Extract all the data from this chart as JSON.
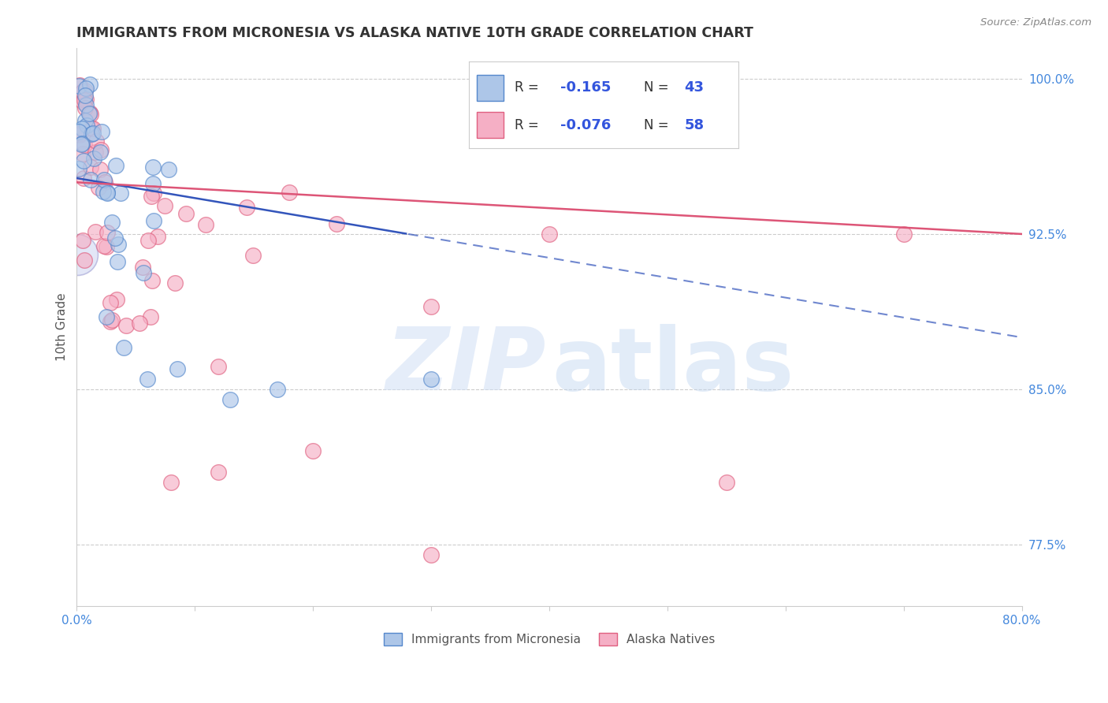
{
  "title": "IMMIGRANTS FROM MICRONESIA VS ALASKA NATIVE 10TH GRADE CORRELATION CHART",
  "source": "Source: ZipAtlas.com",
  "ylabel": "10th Grade",
  "yticks": [
    100.0,
    92.5,
    85.0,
    77.5
  ],
  "ytick_labels": [
    "100.0%",
    "92.5%",
    "85.0%",
    "77.5%"
  ],
  "legend1_label": "Immigrants from Micronesia",
  "legend2_label": "Alaska Natives",
  "blue_color": "#adc6e8",
  "pink_color": "#f5afc5",
  "blue_edge": "#5588cc",
  "pink_edge": "#e06080",
  "title_color": "#333333",
  "axis_color": "#4488dd",
  "trend_blue": "#3355bb",
  "trend_pink": "#dd5577",
  "watermark_zip_color": "#d0dff5",
  "watermark_atlas_color": "#c0d5f0",
  "xmin": 0.0,
  "xmax": 80.0,
  "ymin": 74.5,
  "ymax": 101.5,
  "blue_trend_x0": 0.0,
  "blue_trend_y0": 95.2,
  "blue_trend_x1": 80.0,
  "blue_trend_y1": 87.5,
  "blue_solid_end": 28.0,
  "pink_trend_x0": 0.0,
  "pink_trend_y0": 95.0,
  "pink_trend_x1": 80.0,
  "pink_trend_y1": 92.5,
  "legend_r1": "R = ",
  "legend_v1": "-0.165",
  "legend_n1": "N = ",
  "legend_nv1": "43",
  "legend_r2": "R = ",
  "legend_v2": "-0.076",
  "legend_n2": "N = ",
  "legend_nv2": "58"
}
